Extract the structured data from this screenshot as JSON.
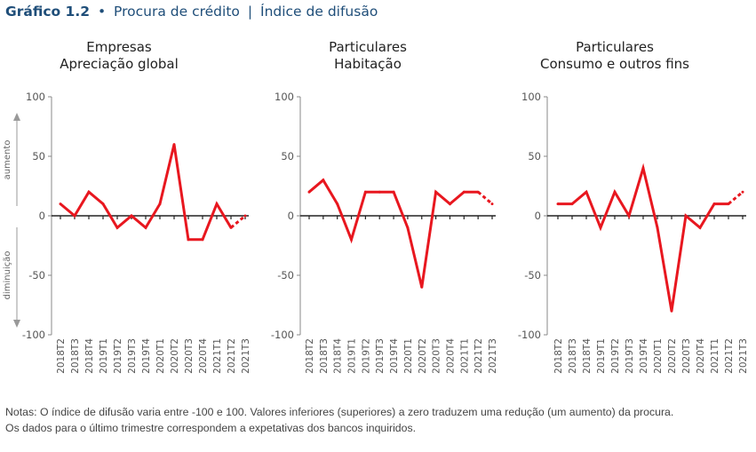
{
  "header": {
    "figure_number": "Gráfico 1.2",
    "bullet": "•",
    "title": "Procura de crédito",
    "separator": "|",
    "subtitle": "Índice de difusão"
  },
  "side_labels": {
    "up": "aumento",
    "down": "diminuição"
  },
  "colors": {
    "series": "#e8171f",
    "header": "#1f4e79",
    "axis": "#888888"
  },
  "chart_data": [
    {
      "type": "line",
      "title": "Empresas",
      "subtitle": "Apreciação global",
      "ylim": [
        -100,
        100
      ],
      "yticks": [
        100,
        50,
        0,
        -50,
        -100
      ],
      "categories": [
        "2018T2",
        "2018T3",
        "2018T4",
        "2019T1",
        "2019T2",
        "2019T3",
        "2019T4",
        "2020T1",
        "2020T2",
        "2020T3",
        "2020T4",
        "2021T1",
        "2021T2",
        "2021T3"
      ],
      "series": [
        {
          "values": [
            10,
            0,
            20,
            10,
            -10,
            0,
            -10,
            10,
            60,
            -20,
            -20,
            10,
            -10,
            0
          ]
        }
      ],
      "last_point_dashed": true
    },
    {
      "type": "line",
      "title": "Particulares",
      "subtitle": "Habitação",
      "ylim": [
        -100,
        100
      ],
      "yticks": [
        100,
        50,
        0,
        -50,
        -100
      ],
      "categories": [
        "2018T2",
        "2018T3",
        "2018T4",
        "2019T1",
        "2019T2",
        "2019T3",
        "2019T4",
        "2020T1",
        "2020T2",
        "2020T3",
        "2020T4",
        "2021T1",
        "2021T2",
        "2021T3"
      ],
      "series": [
        {
          "values": [
            20,
            30,
            10,
            -20,
            20,
            20,
            20,
            -10,
            -60,
            20,
            10,
            20,
            20,
            10
          ]
        }
      ],
      "last_point_dashed": true
    },
    {
      "type": "line",
      "title": "Particulares",
      "subtitle": "Consumo e outros fins",
      "ylim": [
        -100,
        100
      ],
      "yticks": [
        100,
        50,
        0,
        -50,
        -100
      ],
      "categories": [
        "2018T2",
        "2018T3",
        "2018T4",
        "2019T1",
        "2019T2",
        "2019T3",
        "2019T4",
        "2020T1",
        "2020T2",
        "2020T3",
        "2020T4",
        "2021T1",
        "2021T2",
        "2021T3"
      ],
      "series": [
        {
          "values": [
            10,
            10,
            20,
            -10,
            20,
            0,
            40,
            -10,
            -80,
            0,
            -10,
            10,
            10,
            20
          ]
        }
      ],
      "last_point_dashed": true
    }
  ],
  "notes": {
    "line1": "Notas: O índice de difusão varia entre -100 e 100. Valores inferiores (superiores) a zero traduzem uma redução (um aumento) da procura.",
    "line2": "Os dados para o último trimestre correspondem a expetativas dos bancos inquiridos."
  }
}
